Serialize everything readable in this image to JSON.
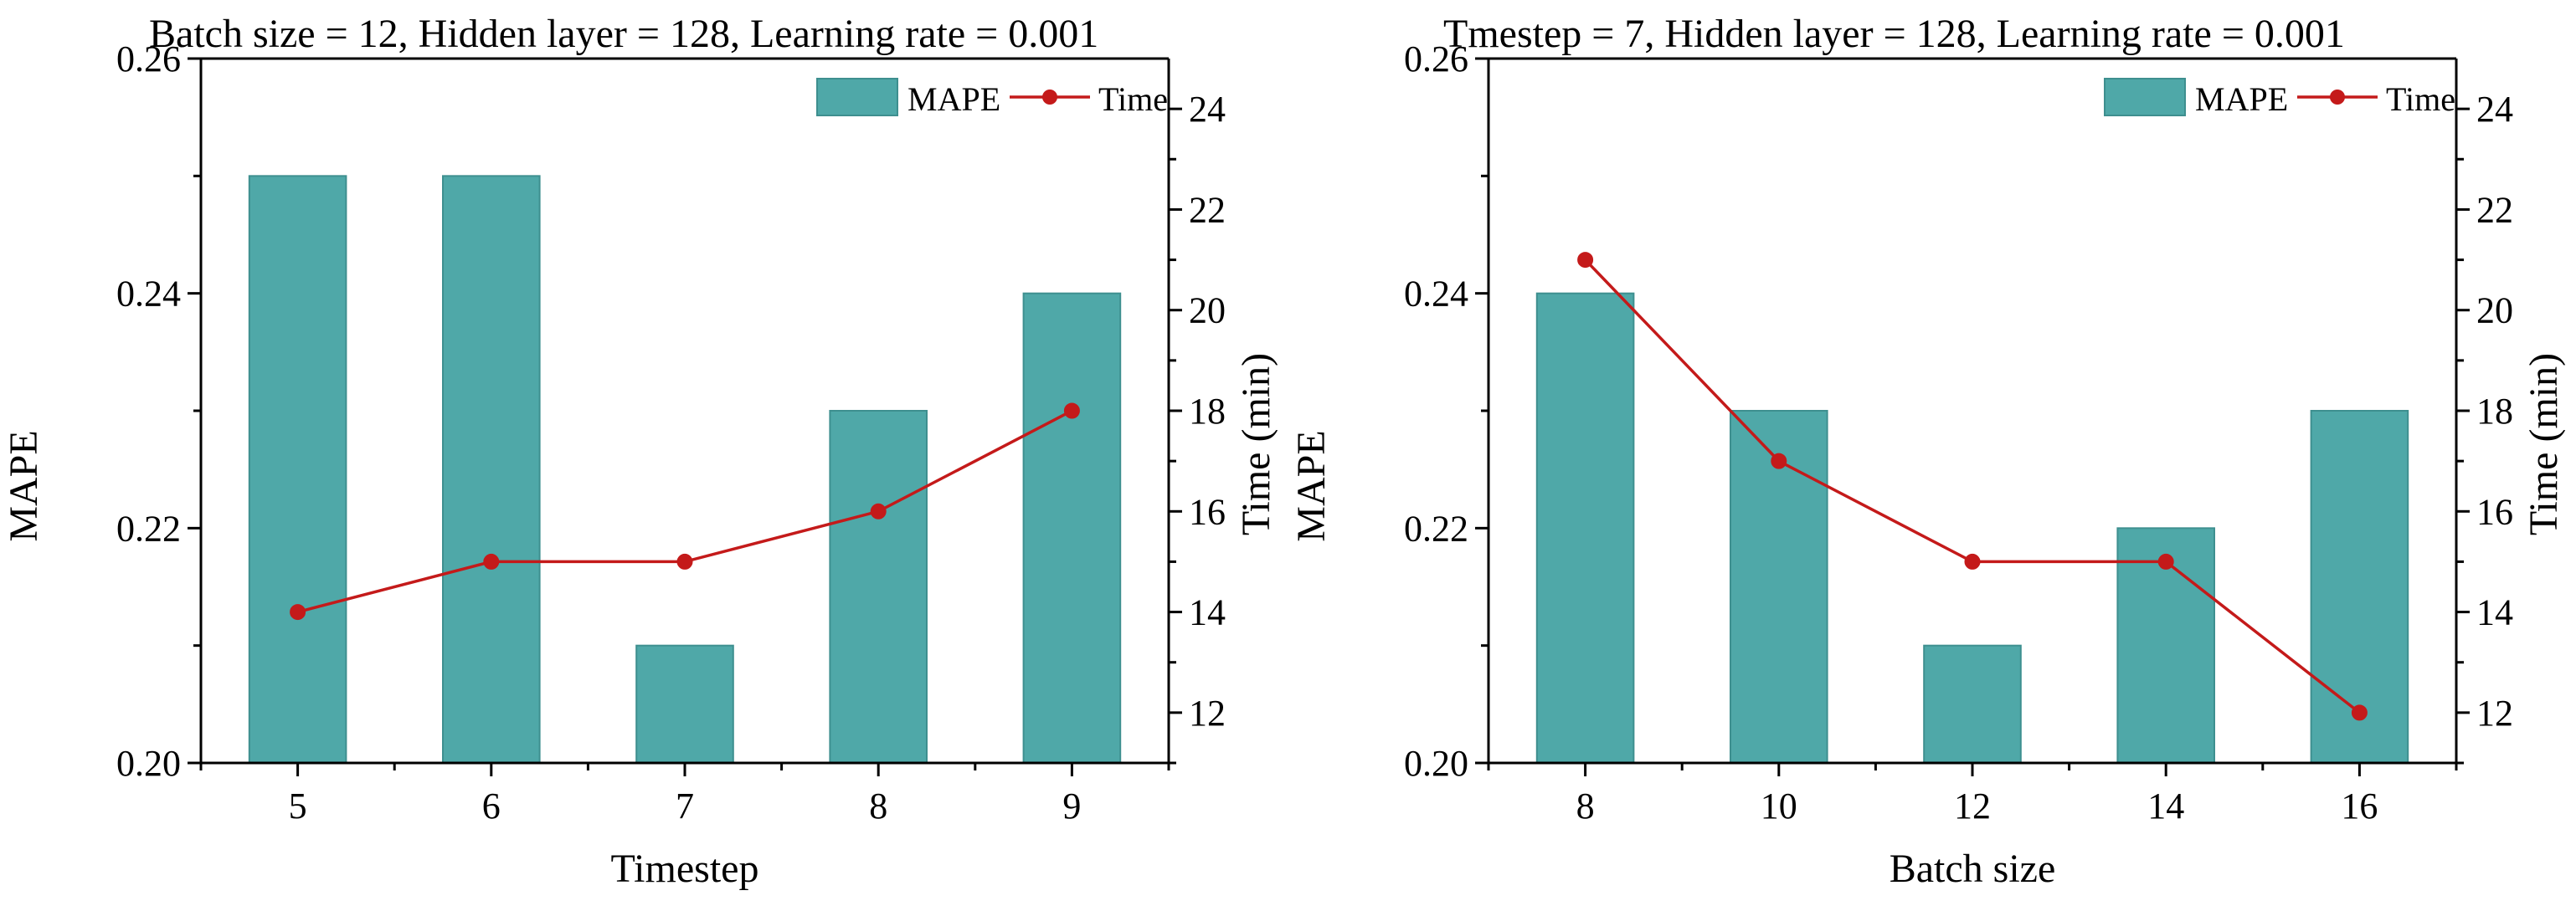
{
  "colors": {
    "bar": "#4FA8A8",
    "bar_edge": "#3E8F8F",
    "line": "#C41A1A"
  },
  "chart_data": [
    {
      "type": "bar+line",
      "title": "Batch size = 12, Hidden layer = 128, Learning rate = 0.001",
      "xlabel": "Timestep",
      "ylabel": "MAPE",
      "y2label": "Time (min)",
      "categories": [
        "5",
        "6",
        "7",
        "8",
        "9"
      ],
      "ylim": [
        0.2,
        0.26
      ],
      "yticks": [
        "0.20",
        "0.22",
        "0.24",
        "0.26"
      ],
      "y2lim": [
        11,
        25
      ],
      "y2ticks": [
        "12",
        "14",
        "16",
        "18",
        "20",
        "22",
        "24"
      ],
      "legend_position": "top-right",
      "series": [
        {
          "name": "MAPE",
          "kind": "bar",
          "axis": "left",
          "values": [
            0.25,
            0.25,
            0.21,
            0.23,
            0.24
          ]
        },
        {
          "name": "Time",
          "kind": "line",
          "axis": "right",
          "values": [
            14,
            15,
            15,
            16,
            18
          ]
        }
      ]
    },
    {
      "type": "bar+line",
      "title": "Tmestep = 7, Hidden layer = 128, Learning rate = 0.001",
      "xlabel": "Batch size",
      "ylabel": "MAPE",
      "y2label": "Time (min)",
      "categories": [
        "8",
        "10",
        "12",
        "14",
        "16"
      ],
      "ylim": [
        0.2,
        0.26
      ],
      "yticks": [
        "0.20",
        "0.22",
        "0.24",
        "0.26"
      ],
      "y2lim": [
        11,
        25
      ],
      "y2ticks": [
        "12",
        "14",
        "16",
        "18",
        "20",
        "22",
        "24"
      ],
      "legend_position": "top-right",
      "series": [
        {
          "name": "MAPE",
          "kind": "bar",
          "axis": "left",
          "values": [
            0.24,
            0.23,
            0.21,
            0.22,
            0.23
          ]
        },
        {
          "name": "Time",
          "kind": "line",
          "axis": "right",
          "values": [
            21,
            17,
            15,
            15,
            12
          ]
        }
      ]
    }
  ]
}
